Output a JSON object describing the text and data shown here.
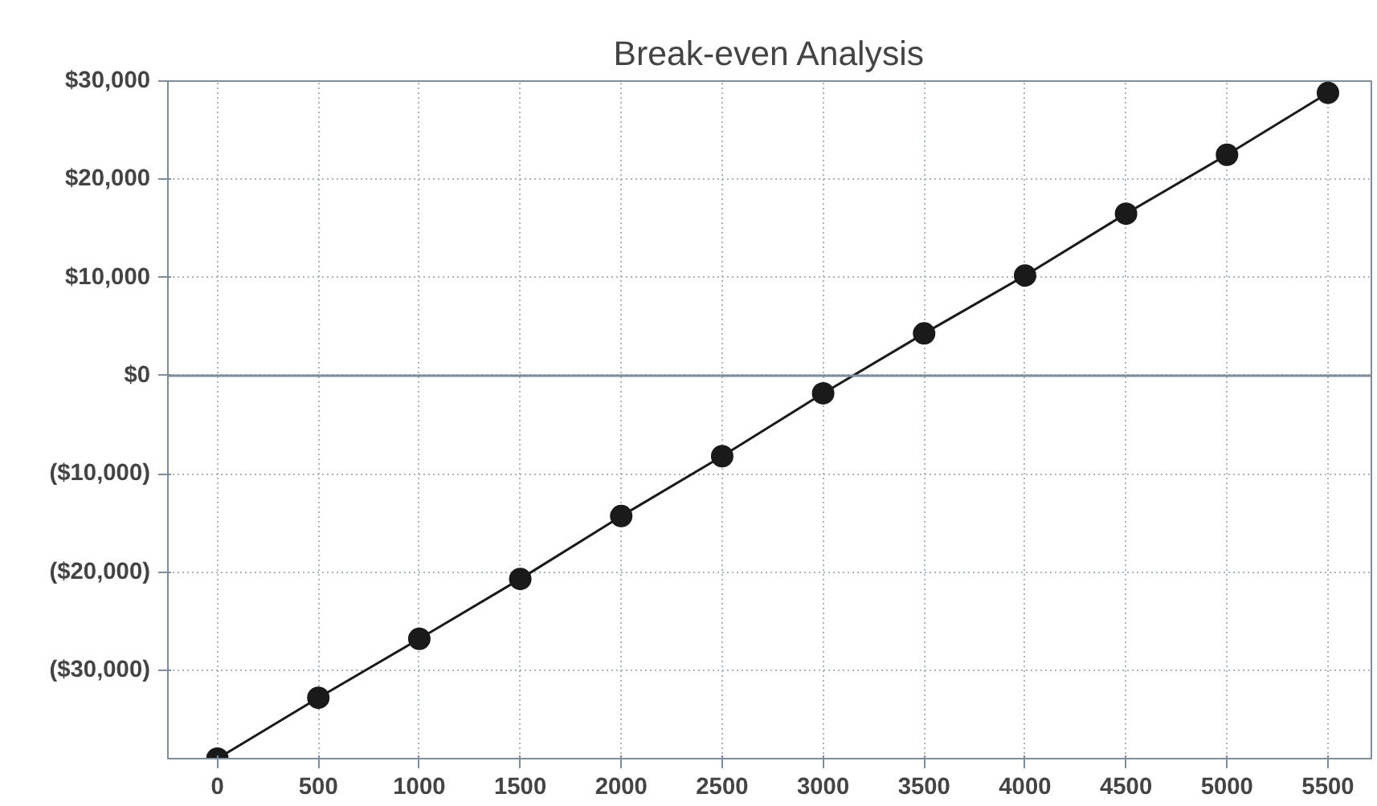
{
  "chart_data": {
    "type": "line",
    "title": "Break-even Analysis",
    "x": [
      0,
      500,
      1000,
      1500,
      2000,
      2500,
      3000,
      3500,
      4000,
      4500,
      5000,
      5500
    ],
    "series": [
      {
        "color": "#1a1a1a",
        "values": [
          -39000,
          -32800,
          -26800,
          -20700,
          -14300,
          -8200,
          -1800,
          4300,
          10200,
          16500,
          22500,
          28800
        ]
      }
    ],
    "xlim": [
      -245,
      5715
    ],
    "xticks": [
      0,
      500,
      1000,
      1500,
      2000,
      2500,
      3000,
      3500,
      4000,
      4500,
      5000,
      5500
    ],
    "ylim": [
      -39000,
      30000
    ],
    "yticks": [
      {
        "value": -30000,
        "label": "($30,000)"
      },
      {
        "value": -20000,
        "label": "($20,000)"
      },
      {
        "value": -10000,
        "label": "($10,000)"
      },
      {
        "value": 0,
        "label": "$0"
      },
      {
        "value": 10000,
        "label": "$10,000"
      },
      {
        "value": 20000,
        "label": "$20,000"
      },
      {
        "value": 30000,
        "label": "$30,000"
      }
    ],
    "grid": true,
    "marker": "circle",
    "line_style": "solid"
  }
}
